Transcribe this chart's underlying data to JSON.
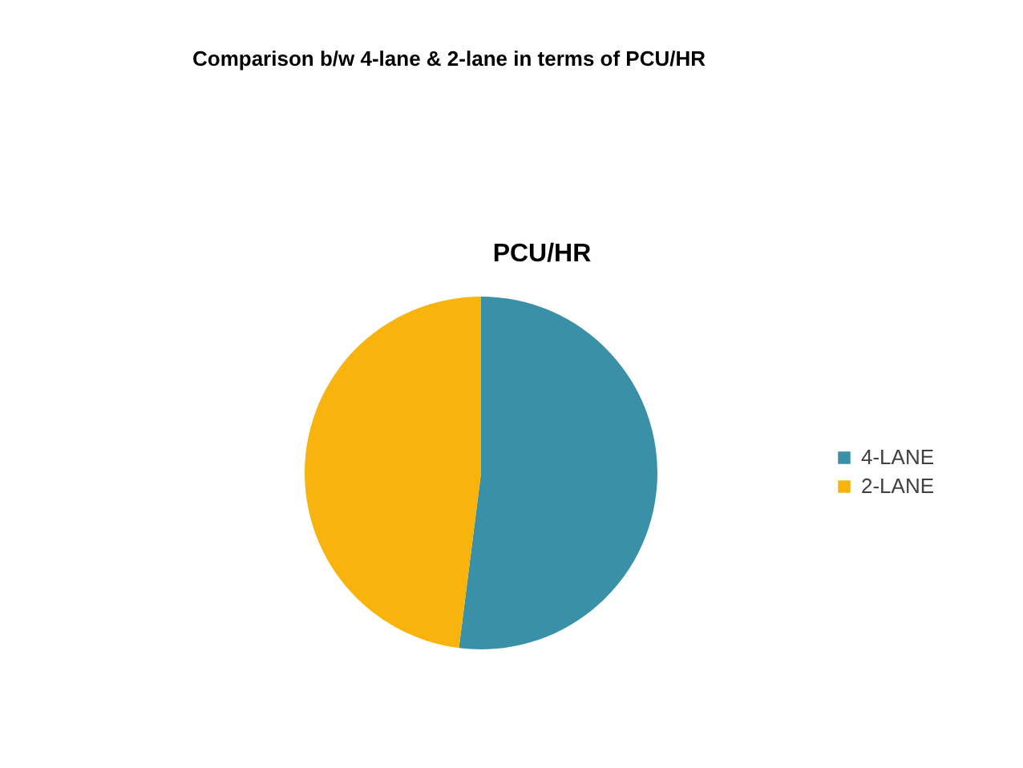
{
  "chart_data": {
    "type": "pie",
    "title": "Comparison b/w 4-lane & 2-lane in terms of PCU/HR",
    "subtitle": "PCU/HR",
    "categories": [
      "4-LANE",
      "2-LANE"
    ],
    "values": [
      52,
      48
    ],
    "colors": [
      "#3a90a6",
      "#f8b40c"
    ],
    "legend": "right"
  }
}
